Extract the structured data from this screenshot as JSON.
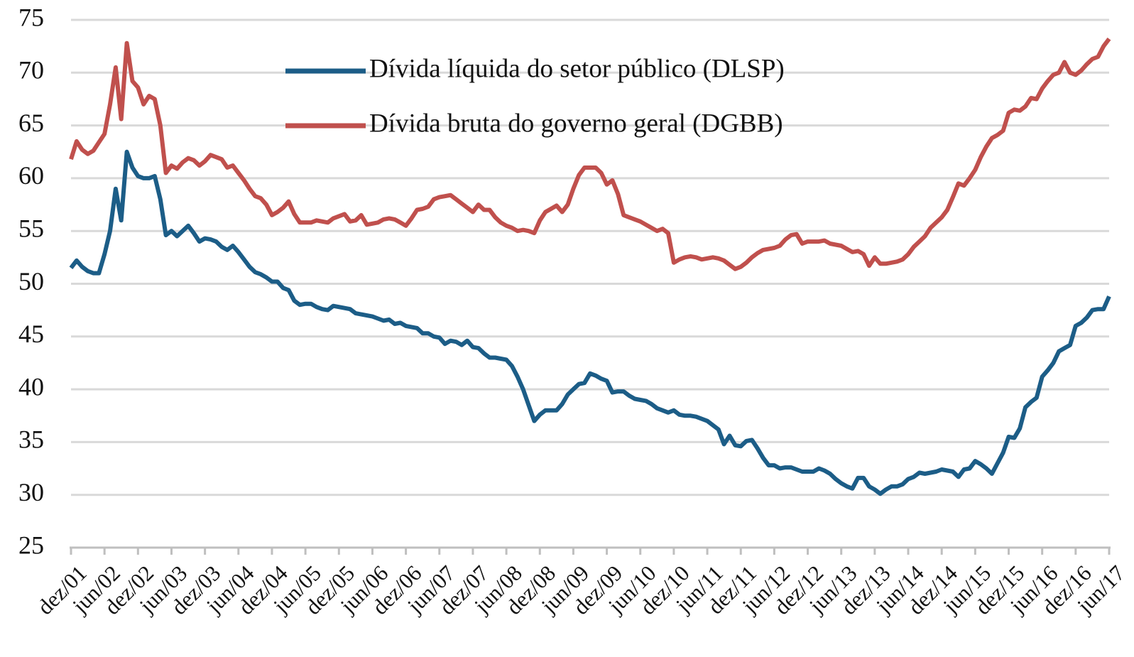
{
  "chart_data": {
    "type": "line",
    "categories": [
      "dez/01",
      null,
      null,
      null,
      null,
      null,
      "jun/02",
      null,
      null,
      null,
      null,
      null,
      "dez/02",
      null,
      null,
      null,
      null,
      null,
      "jun/03",
      null,
      null,
      null,
      null,
      null,
      "dez/03",
      null,
      null,
      null,
      null,
      null,
      "jun/04",
      null,
      null,
      null,
      null,
      null,
      "dez/04",
      null,
      null,
      null,
      null,
      null,
      "jun/05",
      null,
      null,
      null,
      null,
      null,
      "dez/05",
      null,
      null,
      null,
      null,
      null,
      "jun/06",
      null,
      null,
      null,
      null,
      null,
      "dez/06",
      null,
      null,
      null,
      null,
      null,
      "jun/07",
      null,
      null,
      null,
      null,
      null,
      "dez/07",
      null,
      null,
      null,
      null,
      null,
      "jun/08",
      null,
      null,
      null,
      null,
      null,
      "dez/08",
      null,
      null,
      null,
      null,
      null,
      "jun/09",
      null,
      null,
      null,
      null,
      null,
      "dez/09",
      null,
      null,
      null,
      null,
      null,
      "jun/10",
      null,
      null,
      null,
      null,
      null,
      "dez/10",
      null,
      null,
      null,
      null,
      null,
      "jun/11",
      null,
      null,
      null,
      null,
      null,
      "dez/11",
      null,
      null,
      null,
      null,
      null,
      "jun/12",
      null,
      null,
      null,
      null,
      null,
      "dez/12",
      null,
      null,
      null,
      null,
      null,
      "jun/13",
      null,
      null,
      null,
      null,
      null,
      "dez/13",
      null,
      null,
      null,
      null,
      null,
      "jun/14",
      null,
      null,
      null,
      null,
      null,
      "dez/14",
      null,
      null,
      null,
      null,
      null,
      "jun/15",
      null,
      null,
      null,
      null,
      null,
      "dez/15",
      null,
      null,
      null,
      null,
      null,
      "jun/16",
      null,
      null,
      null,
      null,
      null,
      "dez/16",
      null,
      null,
      null,
      null,
      null,
      "jun/17"
    ],
    "series": [
      {
        "name": "Dívida líquida do setor público (DLSP)",
        "color": "#1c5d87",
        "values": [
          51.5,
          52.2,
          51.6,
          51.2,
          51.0,
          51.0,
          52.8,
          55.0,
          59.0,
          56.0,
          62.5,
          61.0,
          60.2,
          60.0,
          60.0,
          60.2,
          58.0,
          54.6,
          55.0,
          54.5,
          55.0,
          55.5,
          54.8,
          54.0,
          54.3,
          54.2,
          54.0,
          53.5,
          53.2,
          53.6,
          53.0,
          52.3,
          51.6,
          51.1,
          50.9,
          50.6,
          50.2,
          50.2,
          49.6,
          49.4,
          48.4,
          48.0,
          48.1,
          48.1,
          47.8,
          47.6,
          47.5,
          47.9,
          47.8,
          47.7,
          47.6,
          47.2,
          47.1,
          47.0,
          46.9,
          46.7,
          46.5,
          46.6,
          46.2,
          46.3,
          46.0,
          45.9,
          45.8,
          45.3,
          45.3,
          45.0,
          44.9,
          44.3,
          44.6,
          44.5,
          44.2,
          44.6,
          44.0,
          43.9,
          43.4,
          43.0,
          43.0,
          42.9,
          42.8,
          42.2,
          41.2,
          40.0,
          38.5,
          37.0,
          37.6,
          38.0,
          38.0,
          38.0,
          38.6,
          39.5,
          40.0,
          40.5,
          40.6,
          41.5,
          41.3,
          41.0,
          40.8,
          39.7,
          39.8,
          39.8,
          39.4,
          39.1,
          39.0,
          38.9,
          38.6,
          38.2,
          38.0,
          37.8,
          38.0,
          37.6,
          37.5,
          37.5,
          37.4,
          37.2,
          37.0,
          36.6,
          36.2,
          34.8,
          35.6,
          34.7,
          34.6,
          35.1,
          35.2,
          34.4,
          33.5,
          32.8,
          32.8,
          32.5,
          32.6,
          32.6,
          32.4,
          32.2,
          32.2,
          32.2,
          32.5,
          32.3,
          32.0,
          31.5,
          31.1,
          30.8,
          30.6,
          31.6,
          31.6,
          30.8,
          30.5,
          30.1,
          30.5,
          30.8,
          30.8,
          31.0,
          31.5,
          31.7,
          32.1,
          32.0,
          32.1,
          32.2,
          32.4,
          32.3,
          32.2,
          31.7,
          32.4,
          32.5,
          33.2,
          32.9,
          32.5,
          32.0,
          33.0,
          34.0,
          35.5,
          35.4,
          36.3,
          38.3,
          38.8,
          39.2,
          41.2,
          41.8,
          42.5,
          43.6,
          43.9,
          44.2,
          46.0,
          46.3,
          46.8,
          47.5,
          47.6,
          47.6,
          48.8
        ]
      },
      {
        "name": "Dívida bruta do governo geral (DGBB)",
        "color": "#c0504d",
        "values": [
          61.8,
          63.5,
          62.7,
          62.3,
          62.6,
          63.4,
          64.2,
          67.0,
          70.5,
          65.6,
          72.8,
          69.2,
          68.6,
          67.0,
          67.8,
          67.5,
          65.0,
          60.5,
          61.2,
          60.9,
          61.5,
          61.9,
          61.7,
          61.2,
          61.6,
          62.2,
          62.0,
          61.8,
          61.0,
          61.2,
          60.5,
          59.8,
          59.0,
          58.3,
          58.1,
          57.5,
          56.5,
          56.8,
          57.2,
          57.8,
          56.6,
          55.8,
          55.8,
          55.8,
          56.0,
          55.9,
          55.8,
          56.2,
          56.4,
          56.6,
          55.9,
          56.0,
          56.5,
          55.6,
          55.7,
          55.8,
          56.1,
          56.2,
          56.1,
          55.8,
          55.5,
          56.2,
          57.0,
          57.1,
          57.3,
          58.0,
          58.2,
          58.3,
          58.4,
          58.0,
          57.6,
          57.2,
          56.8,
          57.5,
          57.0,
          57.0,
          56.3,
          55.8,
          55.5,
          55.3,
          55.0,
          55.1,
          55.0,
          54.8,
          56.0,
          56.8,
          57.1,
          57.4,
          56.8,
          57.5,
          59.0,
          60.3,
          61.0,
          61.0,
          61.0,
          60.5,
          59.4,
          59.8,
          58.5,
          56.5,
          56.3,
          56.1,
          55.9,
          55.6,
          55.3,
          55.0,
          55.2,
          54.8,
          52.0,
          52.3,
          52.5,
          52.6,
          52.5,
          52.3,
          52.4,
          52.5,
          52.4,
          52.2,
          51.8,
          51.4,
          51.6,
          52.0,
          52.5,
          52.9,
          53.2,
          53.3,
          53.4,
          53.6,
          54.2,
          54.6,
          54.7,
          53.8,
          54.0,
          54.0,
          54.0,
          54.1,
          53.8,
          53.7,
          53.6,
          53.3,
          53.0,
          53.1,
          52.8,
          51.7,
          52.5,
          51.9,
          51.9,
          52.0,
          52.1,
          52.3,
          52.8,
          53.5,
          54.0,
          54.5,
          55.3,
          55.8,
          56.3,
          57.0,
          58.2,
          59.5,
          59.3,
          60.0,
          60.8,
          62.0,
          63.0,
          63.8,
          64.1,
          64.5,
          66.2,
          66.5,
          66.4,
          66.8,
          67.6,
          67.5,
          68.5,
          69.2,
          69.8,
          70.0,
          71.0,
          70.0,
          69.8,
          70.2,
          70.8,
          71.3,
          71.5,
          72.5,
          73.2
        ]
      }
    ],
    "ylim": [
      25,
      75
    ],
    "yticks": [
      25,
      30,
      35,
      40,
      45,
      50,
      55,
      60,
      65,
      70,
      75
    ],
    "grid": true,
    "legend": "top"
  }
}
